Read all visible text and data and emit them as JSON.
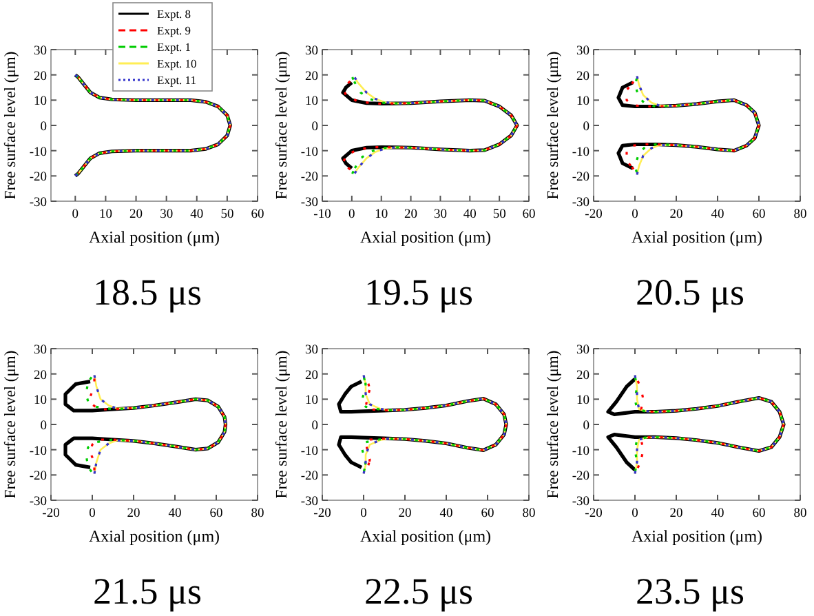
{
  "chart_data": [
    {
      "type": "line",
      "title": "18.5 μs",
      "xlabel": "Axial position (μm)",
      "ylabel": "Free surface level (μm)",
      "xlim": [
        -8,
        60
      ],
      "xticks": [
        0,
        10,
        20,
        30,
        40,
        50,
        60
      ],
      "ylim": [
        -30,
        30
      ],
      "yticks": [
        -30,
        -20,
        -10,
        0,
        10,
        20,
        30
      ],
      "grid": false,
      "legend": "top",
      "series": [
        {
          "name": "Expt. 8",
          "color": "#000000",
          "line_style": "solid",
          "x": [
            0,
            1,
            3,
            5,
            8,
            12,
            20,
            30,
            38,
            43,
            47,
            50,
            51,
            50,
            47,
            43,
            38,
            30,
            20,
            12,
            8,
            5,
            3,
            1,
            0
          ],
          "values": [
            20,
            19,
            16,
            13,
            11,
            10.3,
            10,
            10,
            10,
            9.3,
            7.5,
            4,
            0,
            -4,
            -7.5,
            -9.3,
            -10,
            -10,
            -10,
            -10.3,
            -11,
            -13,
            -16,
            -19,
            -20
          ]
        },
        {
          "name": "Expt. 9",
          "color": "#ff0000",
          "line_style": "dashed",
          "x": [
            0,
            1,
            3,
            5,
            8,
            12,
            20,
            30,
            38,
            43,
            47,
            50,
            51,
            50,
            47,
            43,
            38,
            30,
            20,
            12,
            8,
            5,
            3,
            1,
            0
          ],
          "values": [
            20,
            19,
            16,
            13,
            11,
            10.3,
            10,
            10,
            10,
            9.3,
            7.5,
            4,
            0,
            -4,
            -7.5,
            -9.3,
            -10,
            -10,
            -10,
            -10.3,
            -11,
            -13,
            -16,
            -19,
            -20
          ]
        },
        {
          "name": "Expt. 1",
          "color": "#00cc00",
          "line_style": "dashed",
          "x": [
            0,
            1,
            3,
            5,
            8,
            12,
            20,
            30,
            38,
            43,
            47,
            50,
            51,
            50,
            47,
            43,
            38,
            30,
            20,
            12,
            8,
            5,
            3,
            1,
            0
          ],
          "values": [
            20,
            19,
            16,
            13,
            11,
            10.3,
            10,
            10,
            10,
            9.3,
            7.5,
            4,
            0,
            -4,
            -7.5,
            -9.3,
            -10,
            -10,
            -10,
            -10.3,
            -11,
            -13,
            -16,
            -19,
            -20
          ]
        },
        {
          "name": "Expt. 10",
          "color": "#ffee55",
          "line_style": "solid",
          "x": [
            0,
            1,
            3,
            5,
            8,
            12,
            20,
            30,
            38,
            43,
            47,
            50,
            51,
            50,
            47,
            43,
            38,
            30,
            20,
            12,
            8,
            5,
            3,
            1,
            0
          ],
          "values": [
            20,
            19,
            16,
            13,
            11,
            10.3,
            10,
            10,
            10,
            9.3,
            7.5,
            4,
            0,
            -4,
            -7.5,
            -9.3,
            -10,
            -10,
            -10,
            -10.3,
            -11,
            -13,
            -16,
            -19,
            -20
          ]
        },
        {
          "name": "Expt. 11",
          "color": "#3333cc",
          "line_style": "dotted",
          "x": [
            0,
            1,
            3,
            5,
            8,
            12,
            20,
            30,
            38,
            43,
            47,
            50,
            51,
            50,
            47,
            43,
            38,
            30,
            20,
            12,
            8,
            5,
            3,
            1,
            0
          ],
          "values": [
            20,
            19,
            16,
            13,
            11,
            10.3,
            10,
            10,
            10,
            9.3,
            7.5,
            4,
            0,
            -4,
            -7.5,
            -9.3,
            -10,
            -10,
            -10,
            -10.3,
            -11,
            -13,
            -16,
            -19,
            -20
          ]
        }
      ]
    },
    {
      "type": "line",
      "title": "19.5 μs",
      "xlabel": "Axial position (μm)",
      "ylabel": "Free surface level (μm)",
      "xlim": [
        -10,
        60
      ],
      "xticks": [
        -10,
        0,
        10,
        20,
        30,
        40,
        50,
        60
      ],
      "ylim": [
        -30,
        30
      ],
      "yticks": [
        -30,
        -20,
        -10,
        0,
        10,
        20,
        30
      ],
      "grid": false,
      "series": [
        {
          "color": "#000000",
          "line_style": "solid",
          "x": [
            0,
            -2,
            -3,
            0,
            5,
            10,
            15,
            20,
            30,
            40,
            45,
            50,
            54,
            56,
            54,
            50,
            45,
            40,
            30,
            20,
            15,
            10,
            5,
            0,
            -3,
            -2,
            0
          ],
          "values": [
            17,
            15,
            13,
            10,
            8.8,
            8.6,
            8.7,
            8.8,
            9.5,
            10,
            9.8,
            7.5,
            4,
            0,
            -4,
            -7.5,
            -9.8,
            -10,
            -9.5,
            -8.8,
            -8.7,
            -8.6,
            -8.8,
            -10,
            -13,
            -15,
            -17
          ]
        },
        {
          "color": "#ff0000",
          "line_style": "dashed",
          "x": [
            0,
            -3,
            -2,
            2,
            8,
            15,
            20,
            30,
            40,
            45,
            50,
            54,
            56,
            54,
            50,
            45,
            40,
            30,
            20,
            15,
            8,
            2,
            -2,
            -3,
            0
          ],
          "values": [
            18,
            15,
            12,
            9.5,
            8.6,
            8.7,
            8.8,
            9.5,
            10,
            9.8,
            7.5,
            4,
            0,
            -4,
            -7.5,
            -9.8,
            -10,
            -9.5,
            -8.8,
            -8.7,
            -8.6,
            -9.5,
            -12,
            -15,
            -18
          ]
        },
        {
          "color": "#00cc00",
          "line_style": "dashed",
          "x": [
            0,
            1,
            3,
            6,
            10,
            15,
            20,
            30,
            40,
            45,
            50,
            54,
            56,
            54,
            50,
            45,
            40,
            30,
            20,
            15,
            10,
            6,
            3,
            1,
            0
          ],
          "values": [
            19.5,
            17,
            13,
            10.5,
            9,
            8.7,
            8.8,
            9.5,
            10,
            9.8,
            7.5,
            4,
            0,
            -4,
            -7.5,
            -9.8,
            -10,
            -9.5,
            -8.8,
            -8.7,
            -9,
            -10.5,
            -13,
            -17,
            -19.5
          ]
        },
        {
          "color": "#ffee55",
          "line_style": "solid",
          "x": [
            1,
            2,
            5,
            8,
            11,
            15,
            20,
            30,
            40,
            45,
            50,
            54,
            56,
            54,
            50,
            45,
            40,
            30,
            20,
            15,
            11,
            8,
            5,
            2,
            1
          ],
          "values": [
            19,
            17,
            13,
            10.5,
            9.2,
            8.7,
            8.8,
            9.5,
            10,
            9.8,
            7.5,
            4,
            0,
            -4,
            -7.5,
            -9.8,
            -10,
            -9.5,
            -8.8,
            -8.7,
            -9.2,
            -10.5,
            -13,
            -17,
            -19
          ]
        },
        {
          "color": "#3333cc",
          "line_style": "dotted",
          "x": [
            1,
            2,
            5,
            8,
            11,
            15,
            20,
            30,
            40,
            45,
            50,
            54,
            56,
            54,
            50,
            45,
            40,
            30,
            20,
            15,
            11,
            8,
            5,
            2,
            1
          ],
          "values": [
            19,
            17,
            13,
            10.5,
            9.2,
            8.7,
            8.8,
            9.5,
            10,
            9.8,
            7.5,
            4,
            0,
            -4,
            -7.5,
            -9.8,
            -10,
            -9.5,
            -8.8,
            -8.7,
            -9.2,
            -10.5,
            -13,
            -17,
            -19
          ]
        }
      ]
    },
    {
      "type": "line",
      "title": "20.5 μs",
      "xlabel": "Axial position (μm)",
      "ylabel": "Free surface level (μm)",
      "xlim": [
        -20,
        80
      ],
      "xticks": [
        -20,
        0,
        20,
        40,
        60,
        80
      ],
      "ylim": [
        -30,
        30
      ],
      "yticks": [
        -30,
        -20,
        -10,
        0,
        10,
        20,
        30
      ],
      "grid": false,
      "series": [
        {
          "color": "#000000",
          "line_style": "solid",
          "x": [
            -1,
            -6,
            -8,
            -6,
            0,
            10,
            20,
            30,
            40,
            48,
            54,
            58,
            60,
            58,
            54,
            48,
            40,
            30,
            20,
            10,
            0,
            -6,
            -8,
            -6,
            -1
          ],
          "values": [
            17,
            15,
            11,
            8,
            7.5,
            7.5,
            7.8,
            8.5,
            9.5,
            10,
            8,
            5,
            0,
            -5,
            -8,
            -10,
            -9.5,
            -8.5,
            -7.8,
            -7.5,
            -7.5,
            -8,
            -11,
            -15,
            -17
          ]
        },
        {
          "color": "#ff0000",
          "line_style": "dashed",
          "x": [
            0,
            -4,
            -4,
            -1,
            5,
            10,
            20,
            30,
            40,
            48,
            54,
            58,
            60,
            58,
            54,
            48,
            40,
            30,
            20,
            10,
            5,
            -1,
            -4,
            -4,
            0
          ],
          "values": [
            18,
            14,
            10,
            8,
            7.5,
            7.5,
            7.8,
            8.5,
            9.5,
            10,
            8,
            5,
            0,
            -5,
            -8,
            -10,
            -9.5,
            -8.5,
            -7.8,
            -7.5,
            -7.5,
            -8,
            -10,
            -14,
            -18
          ]
        },
        {
          "color": "#00cc00",
          "line_style": "dashed",
          "x": [
            1,
            0,
            2,
            5,
            10,
            20,
            30,
            40,
            48,
            54,
            58,
            60,
            58,
            54,
            48,
            40,
            30,
            20,
            10,
            5,
            2,
            0,
            1
          ],
          "values": [
            19,
            16,
            11,
            8.5,
            7.5,
            7.8,
            8.5,
            9.5,
            10,
            8,
            5,
            0,
            -5,
            -8,
            -10,
            -9.5,
            -8.5,
            -7.8,
            -7.5,
            -8.5,
            -11,
            -16,
            -19
          ]
        },
        {
          "color": "#ffee55",
          "line_style": "solid",
          "x": [
            1,
            2,
            4,
            8,
            12,
            20,
            30,
            40,
            48,
            54,
            58,
            60,
            58,
            54,
            48,
            40,
            30,
            20,
            12,
            8,
            4,
            2,
            1
          ],
          "values": [
            19.5,
            16,
            12,
            9,
            7.8,
            7.8,
            8.5,
            9.5,
            10,
            8,
            5,
            0,
            -5,
            -8,
            -10,
            -9.5,
            -8.5,
            -7.8,
            -7.8,
            -9,
            -12,
            -16,
            -19.5
          ]
        },
        {
          "color": "#3333cc",
          "line_style": "dotted",
          "x": [
            1,
            2,
            4,
            8,
            12,
            20,
            30,
            40,
            48,
            54,
            58,
            60,
            58,
            54,
            48,
            40,
            30,
            20,
            12,
            8,
            4,
            2,
            1
          ],
          "values": [
            19.5,
            16,
            12,
            9,
            7.8,
            7.8,
            8.5,
            9.5,
            10,
            8,
            5,
            0,
            -5,
            -8,
            -10,
            -9.5,
            -8.5,
            -7.8,
            -7.8,
            -9,
            -12,
            -16,
            -19.5
          ]
        }
      ]
    },
    {
      "type": "line",
      "title": "21.5 μs",
      "xlabel": "Axial position (μm)",
      "ylabel": "Free surface level (μm)",
      "xlim": [
        -20,
        80
      ],
      "xticks": [
        -20,
        0,
        20,
        40,
        60,
        80
      ],
      "ylim": [
        -30,
        30
      ],
      "yticks": [
        -30,
        -20,
        -10,
        0,
        10,
        20,
        30
      ],
      "grid": false,
      "series": [
        {
          "color": "#000000",
          "line_style": "solid",
          "x": [
            -1,
            -8,
            -13,
            -13,
            -9,
            0,
            10,
            20,
            30,
            40,
            50,
            56,
            61,
            64,
            64.5,
            64,
            61,
            56,
            50,
            40,
            30,
            20,
            10,
            0,
            -9,
            -13,
            -13,
            -8,
            -1
          ],
          "values": [
            17,
            16,
            12,
            8,
            5.5,
            5.5,
            6,
            6.5,
            7.5,
            8.7,
            10,
            9.5,
            7,
            3,
            0,
            -3,
            -7,
            -9.5,
            -10,
            -8.7,
            -7.5,
            -6.5,
            -6,
            -5.5,
            -5.5,
            -8,
            -12,
            -16,
            -17
          ]
        },
        {
          "color": "#ff0000",
          "line_style": "dashed",
          "x": [
            1,
            1,
            -1,
            0,
            3,
            10,
            20,
            30,
            40,
            50,
            56,
            61,
            64,
            64.5,
            64,
            61,
            56,
            50,
            40,
            30,
            20,
            10,
            3,
            0,
            -1,
            1,
            1
          ],
          "values": [
            19,
            15,
            11,
            8,
            6,
            6,
            6.5,
            7.5,
            8.7,
            10,
            9.5,
            7,
            3,
            0,
            -3,
            -7,
            -9.5,
            -10,
            -8.7,
            -7.5,
            -6.5,
            -6,
            -6,
            -8,
            -11,
            -15,
            -19
          ]
        },
        {
          "color": "#00cc00",
          "line_style": "dashed",
          "x": [
            0,
            -2,
            -3,
            -2,
            2,
            10,
            20,
            30,
            40,
            50,
            56,
            61,
            64,
            64.5,
            64,
            61,
            56,
            50,
            40,
            30,
            20,
            10,
            2,
            -2,
            -3,
            -2,
            0
          ],
          "values": [
            19,
            17,
            12,
            9,
            7,
            6,
            6.5,
            7.5,
            8.7,
            10,
            9.5,
            7,
            3,
            0,
            -3,
            -7,
            -9.5,
            -10,
            -8.7,
            -7.5,
            -6.5,
            -6,
            -7,
            -9,
            -12,
            -17,
            -19
          ]
        },
        {
          "color": "#ffee55",
          "line_style": "solid",
          "x": [
            1,
            2,
            4,
            8,
            12,
            20,
            30,
            40,
            50,
            56,
            61,
            64,
            64.5,
            64,
            61,
            56,
            50,
            40,
            30,
            20,
            12,
            8,
            4,
            2,
            1
          ],
          "values": [
            19.5,
            15,
            10,
            7.5,
            6.3,
            6.5,
            7.5,
            8.7,
            10,
            9.5,
            7,
            3,
            0,
            -3,
            -7,
            -9.5,
            -10,
            -8.7,
            -7.5,
            -6.5,
            -6.3,
            -7.5,
            -10,
            -15,
            -19.5
          ]
        },
        {
          "color": "#3333cc",
          "line_style": "dotted",
          "x": [
            1,
            2,
            4,
            8,
            12,
            20,
            30,
            40,
            50,
            56,
            61,
            64,
            64.5,
            64,
            61,
            56,
            50,
            40,
            30,
            20,
            12,
            8,
            4,
            2,
            1
          ],
          "values": [
            19.5,
            15,
            10,
            7.5,
            6.3,
            6.5,
            7.5,
            8.7,
            10,
            9.5,
            7,
            3,
            0,
            -3,
            -7,
            -9.5,
            -10,
            -8.7,
            -7.5,
            -6.5,
            -6.3,
            -7.5,
            -10,
            -15,
            -19.5
          ]
        }
      ]
    },
    {
      "type": "line",
      "title": "22.5 μs",
      "xlabel": "Axial position (μm)",
      "ylabel": "Free surface level (μm)",
      "xlim": [
        -20,
        80
      ],
      "xticks": [
        -20,
        0,
        20,
        40,
        60,
        80
      ],
      "ylim": [
        -30,
        30
      ],
      "yticks": [
        -30,
        -20,
        -10,
        0,
        10,
        20,
        30
      ],
      "grid": false,
      "series": [
        {
          "color": "#000000",
          "line_style": "solid",
          "x": [
            -1,
            -6,
            -9,
            -12,
            -11,
            -6,
            0,
            10,
            20,
            30,
            40,
            50,
            58,
            64,
            68,
            69,
            68,
            64,
            58,
            50,
            40,
            30,
            20,
            10,
            0,
            -6,
            -11,
            -12,
            -9,
            -6,
            -1
          ],
          "values": [
            17,
            15,
            12,
            8,
            5,
            5,
            5.2,
            5.5,
            5.8,
            6.5,
            7.5,
            9.2,
            10.2,
            8,
            4,
            0,
            -4,
            -8,
            -10.2,
            -9.2,
            -7.5,
            -6.5,
            -5.8,
            -5.5,
            -5.2,
            -5,
            -5,
            -8,
            -12,
            -15,
            -17
          ]
        },
        {
          "color": "#ff0000",
          "line_style": "dashed",
          "x": [
            2,
            3,
            2,
            1,
            3,
            10,
            20,
            30,
            40,
            50,
            58,
            64,
            68,
            69,
            68,
            64,
            58,
            50,
            40,
            30,
            20,
            10,
            3,
            1,
            2,
            3,
            2
          ],
          "values": [
            17,
            14,
            11,
            7,
            6,
            5.6,
            5.8,
            6.5,
            7.5,
            9.2,
            10.2,
            8,
            4,
            0,
            -4,
            -8,
            -10.2,
            -9.2,
            -7.5,
            -6.5,
            -5.8,
            -5.6,
            -6,
            -7,
            -11,
            -14,
            -17
          ]
        },
        {
          "color": "#00cc00",
          "line_style": "dashed",
          "x": [
            0,
            1,
            0,
            -1,
            1,
            10,
            20,
            30,
            40,
            50,
            58,
            64,
            68,
            69,
            68,
            64,
            58,
            50,
            40,
            30,
            20,
            10,
            1,
            -1,
            0,
            1,
            0
          ],
          "values": [
            19,
            16,
            12,
            9,
            7,
            5.6,
            5.8,
            6.5,
            7.5,
            9.2,
            10.2,
            8,
            4,
            0,
            -4,
            -8,
            -10.2,
            -9.2,
            -7.5,
            -6.5,
            -5.8,
            -5.6,
            -7,
            -9,
            -12,
            -16,
            -19
          ]
        },
        {
          "color": "#ffee55",
          "line_style": "solid",
          "x": [
            0,
            1,
            1,
            3,
            8,
            12,
            20,
            30,
            40,
            50,
            58,
            64,
            68,
            69,
            68,
            64,
            58,
            50,
            40,
            30,
            20,
            12,
            8,
            3,
            1,
            1,
            0
          ],
          "values": [
            19.5,
            16,
            12,
            8,
            6.2,
            5.6,
            5.8,
            6.5,
            7.5,
            9.2,
            10.2,
            8,
            4,
            0,
            -4,
            -8,
            -10.2,
            -9.2,
            -7.5,
            -6.5,
            -5.8,
            -5.6,
            -6.2,
            -8,
            -12,
            -16,
            -19.5
          ]
        },
        {
          "color": "#3333cc",
          "line_style": "dotted",
          "x": [
            0,
            1,
            1,
            3,
            8,
            12,
            20,
            30,
            40,
            50,
            58,
            64,
            68,
            69,
            68,
            64,
            58,
            50,
            40,
            30,
            20,
            12,
            8,
            3,
            1,
            1,
            0
          ],
          "values": [
            19.5,
            16,
            12,
            8,
            6.2,
            5.6,
            5.8,
            6.5,
            7.5,
            9.2,
            10.2,
            8,
            4,
            0,
            -4,
            -8,
            -10.2,
            -9.2,
            -7.5,
            -6.5,
            -5.8,
            -5.6,
            -6.2,
            -8,
            -12,
            -16,
            -19.5
          ]
        }
      ]
    },
    {
      "type": "line",
      "title": "23.5 μs",
      "xlabel": "Axial position (μm)",
      "ylabel": "Free surface level (μm)",
      "xlim": [
        -20,
        80
      ],
      "xticks": [
        -20,
        0,
        20,
        40,
        60,
        80
      ],
      "ylim": [
        -30,
        30
      ],
      "yticks": [
        -30,
        -20,
        -10,
        0,
        10,
        20,
        30
      ],
      "grid": false,
      "series": [
        {
          "color": "#000000",
          "line_style": "solid",
          "x": [
            0,
            -4,
            -9,
            -13,
            -10,
            0,
            10,
            20,
            30,
            40,
            50,
            60,
            66,
            70,
            72,
            70,
            66,
            60,
            50,
            40,
            30,
            20,
            10,
            0,
            -10,
            -13,
            -9,
            -4,
            0
          ],
          "values": [
            18,
            15,
            9,
            5,
            4,
            5,
            5,
            5.4,
            6.2,
            7.3,
            9,
            10.5,
            9,
            5,
            0,
            -5,
            -9,
            -10.5,
            -9,
            -7.3,
            -6.2,
            -5.4,
            -5,
            -5,
            -4,
            -5,
            -9,
            -15,
            -18
          ]
        },
        {
          "color": "#ff0000",
          "line_style": "dashed",
          "x": [
            1,
            3,
            4,
            3,
            5,
            10,
            20,
            30,
            40,
            50,
            60,
            66,
            70,
            72,
            70,
            66,
            60,
            50,
            40,
            30,
            20,
            10,
            5,
            3,
            4,
            3,
            1
          ],
          "values": [
            18,
            14,
            10,
            6,
            5.2,
            5,
            5.4,
            6.2,
            7.3,
            9,
            10.5,
            9,
            5,
            0,
            -5,
            -9,
            -10.5,
            -9,
            -7.3,
            -6.2,
            -5.4,
            -5,
            -5.2,
            -6,
            -10,
            -14,
            -18
          ]
        },
        {
          "color": "#00cc00",
          "line_style": "dashed",
          "x": [
            0,
            1,
            0,
            1,
            5,
            10,
            20,
            30,
            40,
            50,
            60,
            66,
            70,
            72,
            70,
            66,
            60,
            50,
            40,
            30,
            20,
            10,
            5,
            1,
            0,
            1,
            0
          ],
          "values": [
            19,
            15,
            10,
            6,
            5.2,
            5,
            5.4,
            6.2,
            7.3,
            9,
            10.5,
            9,
            5,
            0,
            -5,
            -9,
            -10.5,
            -9,
            -7.3,
            -6.2,
            -5.4,
            -5,
            -5.2,
            -6,
            -10,
            -15,
            -19
          ]
        },
        {
          "color": "#ffee55",
          "line_style": "solid",
          "x": [
            0,
            1,
            1,
            2,
            6,
            12,
            20,
            30,
            40,
            50,
            60,
            66,
            70,
            72,
            70,
            66,
            60,
            50,
            40,
            30,
            20,
            12,
            6,
            2,
            1,
            1,
            0
          ],
          "values": [
            19.5,
            15,
            10,
            6,
            5.2,
            5.1,
            5.4,
            6.2,
            7.3,
            9,
            10.5,
            9,
            5,
            0,
            -5,
            -9,
            -10.5,
            -9,
            -7.3,
            -6.2,
            -5.4,
            -5.1,
            -5.2,
            -6,
            -10,
            -15,
            -19.5
          ]
        },
        {
          "color": "#3333cc",
          "line_style": "dotted",
          "x": [
            0,
            1,
            1,
            2,
            6,
            12,
            20,
            30,
            40,
            50,
            60,
            66,
            70,
            72,
            70,
            66,
            60,
            50,
            40,
            30,
            20,
            12,
            6,
            2,
            1,
            1,
            0
          ],
          "values": [
            19.5,
            15,
            10,
            6,
            5.2,
            5.1,
            5.4,
            6.2,
            7.3,
            9,
            10.5,
            9,
            5,
            0,
            -5,
            -9,
            -10.5,
            -9,
            -7.3,
            -6.2,
            -5.4,
            -5.1,
            -5.2,
            -6,
            -10,
            -15,
            -19.5
          ]
        }
      ]
    }
  ]
}
